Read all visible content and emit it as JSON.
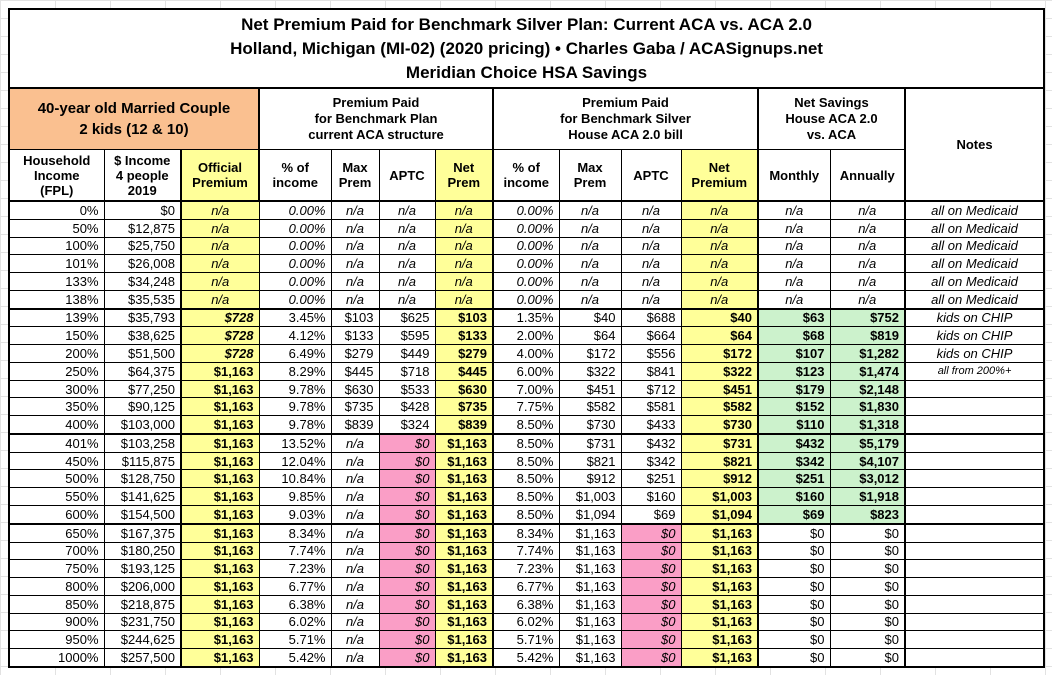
{
  "title": {
    "line1": "Net Premium Paid for Benchmark Silver Plan: Current ACA vs. ACA 2.0",
    "line2": "Holland, Michigan (MI-02) (2020 pricing) • Charles Gaba / ACASignups.net",
    "line3": "Meridian Choice HSA Savings"
  },
  "header": {
    "demographic": "40-year old Married Couple\n2 kids (12 & 10)",
    "group_current_aca": "Premium Paid\nfor Benchmark Plan\ncurrent ACA structure",
    "group_aca2": "Premium Paid\nfor Benchmark Silver\nHouse ACA 2.0 bill",
    "group_net_savings": "Net Savings\nHouse ACA 2.0\nvs. ACA",
    "notes_label": "Notes"
  },
  "colors": {
    "orange": "#FAC090",
    "yellow": "#FFFF99",
    "pink": "#FA9EC6",
    "green": "#CCF2CC",
    "border": "#000000"
  },
  "chart_data": {
    "type": "table",
    "title": "Net Premium Paid for Benchmark Silver Plan: Current ACA vs. ACA 2.0",
    "subtitle": "Holland, Michigan (MI-02) (2020 pricing) • Charles Gaba / ACASignups.net — Meridian Choice HSA Savings",
    "column_headers": {
      "fpl": "Household\nIncome\n(FPL)",
      "income_2019": "$ Income\n4 people\n2019",
      "official_premium": "Official\nPremium",
      "aca_pct_income": "% of\nincome",
      "aca_max_prem": "Max\nPrem",
      "aca_aptc": "APTC",
      "aca_net_prem": "Net\nPrem",
      "aca2_pct_income": "% of\nincome",
      "aca2_max_prem": "Max\nPrem",
      "aca2_aptc": "APTC",
      "aca2_net_premium": "Net\nPremium",
      "savings_monthly": "Monthly",
      "savings_annually": "Annually"
    },
    "column_keys": [
      "fpl",
      "income_2019",
      "official_premium",
      "aca_pct_income",
      "aca_max_prem",
      "aca_aptc",
      "aca_net_prem",
      "aca2_pct_income",
      "aca2_max_prem",
      "aca2_aptc",
      "aca2_net_premium",
      "savings_monthly",
      "savings_annually",
      "notes"
    ],
    "rows": [
      {
        "zone": "medicaid",
        "cells": [
          "0%",
          "$0",
          "n/a",
          "0.00%",
          "n/a",
          "n/a",
          "n/a",
          "0.00%",
          "n/a",
          "n/a",
          "n/a",
          "n/a",
          "n/a",
          "all on Medicaid"
        ]
      },
      {
        "zone": "medicaid",
        "cells": [
          "50%",
          "$12,875",
          "n/a",
          "0.00%",
          "n/a",
          "n/a",
          "n/a",
          "0.00%",
          "n/a",
          "n/a",
          "n/a",
          "n/a",
          "n/a",
          "all on Medicaid"
        ]
      },
      {
        "zone": "medicaid",
        "cells": [
          "100%",
          "$25,750",
          "n/a",
          "0.00%",
          "n/a",
          "n/a",
          "n/a",
          "0.00%",
          "n/a",
          "n/a",
          "n/a",
          "n/a",
          "n/a",
          "all on Medicaid"
        ]
      },
      {
        "zone": "medicaid",
        "cells": [
          "101%",
          "$26,008",
          "n/a",
          "0.00%",
          "n/a",
          "n/a",
          "n/a",
          "0.00%",
          "n/a",
          "n/a",
          "n/a",
          "n/a",
          "n/a",
          "all on Medicaid"
        ]
      },
      {
        "zone": "medicaid",
        "cells": [
          "133%",
          "$34,248",
          "n/a",
          "0.00%",
          "n/a",
          "n/a",
          "n/a",
          "0.00%",
          "n/a",
          "n/a",
          "n/a",
          "n/a",
          "n/a",
          "all on Medicaid"
        ]
      },
      {
        "zone": "medicaid",
        "cells": [
          "138%",
          "$35,535",
          "n/a",
          "0.00%",
          "n/a",
          "n/a",
          "n/a",
          "0.00%",
          "n/a",
          "n/a",
          "n/a",
          "n/a",
          "n/a",
          "all on Medicaid"
        ]
      },
      {
        "zone": "subsidy",
        "cells": [
          "139%",
          "$35,793",
          "$728",
          "3.45%",
          "$103",
          "$625",
          "$103",
          "1.35%",
          "$40",
          "$688",
          "$40",
          "$63",
          "$752",
          "kids on CHIP"
        ]
      },
      {
        "zone": "subsidy",
        "cells": [
          "150%",
          "$38,625",
          "$728",
          "4.12%",
          "$133",
          "$595",
          "$133",
          "2.00%",
          "$64",
          "$664",
          "$64",
          "$68",
          "$819",
          "kids on CHIP"
        ]
      },
      {
        "zone": "subsidy",
        "cells": [
          "200%",
          "$51,500",
          "$728",
          "6.49%",
          "$279",
          "$449",
          "$279",
          "4.00%",
          "$172",
          "$556",
          "$172",
          "$107",
          "$1,282",
          "kids on CHIP"
        ]
      },
      {
        "zone": "subsidy",
        "cells": [
          "250%",
          "$64,375",
          "$1,163",
          "8.29%",
          "$445",
          "$718",
          "$445",
          "6.00%",
          "$322",
          "$841",
          "$322",
          "$123",
          "$1,474",
          "all from 200%+"
        ]
      },
      {
        "zone": "subsidy",
        "cells": [
          "300%",
          "$77,250",
          "$1,163",
          "9.78%",
          "$630",
          "$533",
          "$630",
          "7.00%",
          "$451",
          "$712",
          "$451",
          "$179",
          "$2,148",
          ""
        ]
      },
      {
        "zone": "subsidy",
        "cells": [
          "350%",
          "$90,125",
          "$1,163",
          "9.78%",
          "$735",
          "$428",
          "$735",
          "7.75%",
          "$582",
          "$581",
          "$582",
          "$152",
          "$1,830",
          ""
        ]
      },
      {
        "zone": "subsidy",
        "cells": [
          "400%",
          "$103,000",
          "$1,163",
          "9.78%",
          "$839",
          "$324",
          "$839",
          "8.50%",
          "$730",
          "$433",
          "$730",
          "$110",
          "$1,318",
          ""
        ]
      },
      {
        "zone": "cliff",
        "cells": [
          "401%",
          "$103,258",
          "$1,163",
          "13.52%",
          "n/a",
          "$0",
          "$1,163",
          "8.50%",
          "$731",
          "$432",
          "$731",
          "$432",
          "$5,179",
          ""
        ]
      },
      {
        "zone": "cliff",
        "cells": [
          "450%",
          "$115,875",
          "$1,163",
          "12.04%",
          "n/a",
          "$0",
          "$1,163",
          "8.50%",
          "$821",
          "$342",
          "$821",
          "$342",
          "$4,107",
          ""
        ]
      },
      {
        "zone": "cliff",
        "cells": [
          "500%",
          "$128,750",
          "$1,163",
          "10.84%",
          "n/a",
          "$0",
          "$1,163",
          "8.50%",
          "$912",
          "$251",
          "$912",
          "$251",
          "$3,012",
          ""
        ]
      },
      {
        "zone": "cliff",
        "cells": [
          "550%",
          "$141,625",
          "$1,163",
          "9.85%",
          "n/a",
          "$0",
          "$1,163",
          "8.50%",
          "$1,003",
          "$160",
          "$1,003",
          "$160",
          "$1,918",
          ""
        ]
      },
      {
        "zone": "cliff",
        "cells": [
          "600%",
          "$154,500",
          "$1,163",
          "9.03%",
          "n/a",
          "$0",
          "$1,163",
          "8.50%",
          "$1,094",
          "$69",
          "$1,094",
          "$69",
          "$823",
          ""
        ]
      },
      {
        "zone": "over",
        "cells": [
          "650%",
          "$167,375",
          "$1,163",
          "8.34%",
          "n/a",
          "$0",
          "$1,163",
          "8.34%",
          "$1,163",
          "$0",
          "$1,163",
          "$0",
          "$0",
          ""
        ]
      },
      {
        "zone": "over",
        "cells": [
          "700%",
          "$180,250",
          "$1,163",
          "7.74%",
          "n/a",
          "$0",
          "$1,163",
          "7.74%",
          "$1,163",
          "$0",
          "$1,163",
          "$0",
          "$0",
          ""
        ]
      },
      {
        "zone": "over",
        "cells": [
          "750%",
          "$193,125",
          "$1,163",
          "7.23%",
          "n/a",
          "$0",
          "$1,163",
          "7.23%",
          "$1,163",
          "$0",
          "$1,163",
          "$0",
          "$0",
          ""
        ]
      },
      {
        "zone": "over",
        "cells": [
          "800%",
          "$206,000",
          "$1,163",
          "6.77%",
          "n/a",
          "$0",
          "$1,163",
          "6.77%",
          "$1,163",
          "$0",
          "$1,163",
          "$0",
          "$0",
          ""
        ]
      },
      {
        "zone": "over",
        "cells": [
          "850%",
          "$218,875",
          "$1,163",
          "6.38%",
          "n/a",
          "$0",
          "$1,163",
          "6.38%",
          "$1,163",
          "$0",
          "$1,163",
          "$0",
          "$0",
          ""
        ]
      },
      {
        "zone": "over",
        "cells": [
          "900%",
          "$231,750",
          "$1,163",
          "6.02%",
          "n/a",
          "$0",
          "$1,163",
          "6.02%",
          "$1,163",
          "$0",
          "$1,163",
          "$0",
          "$0",
          ""
        ]
      },
      {
        "zone": "over",
        "cells": [
          "950%",
          "$244,625",
          "$1,163",
          "5.71%",
          "n/a",
          "$0",
          "$1,163",
          "5.71%",
          "$1,163",
          "$0",
          "$1,163",
          "$0",
          "$0",
          ""
        ]
      },
      {
        "zone": "over",
        "cells": [
          "1000%",
          "$257,500",
          "$1,163",
          "5.42%",
          "n/a",
          "$0",
          "$1,163",
          "5.42%",
          "$1,163",
          "$0",
          "$1,163",
          "$0",
          "$0",
          ""
        ]
      }
    ]
  }
}
